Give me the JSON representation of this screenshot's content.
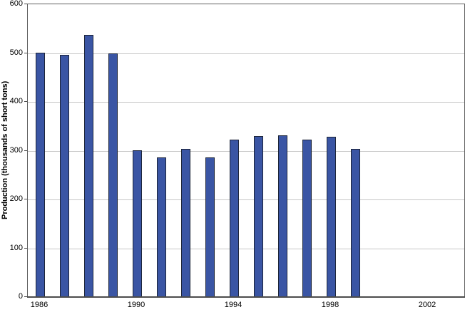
{
  "chart_data": {
    "type": "bar",
    "title": "",
    "xlabel": "",
    "ylabel": "Production (thousands of short tons)",
    "categories": [
      1986,
      1987,
      1988,
      1989,
      1990,
      1991,
      1992,
      1993,
      1994,
      1995,
      1996,
      1997,
      1998,
      1999
    ],
    "values": [
      501,
      496,
      537,
      499,
      301,
      286,
      303,
      286,
      322,
      330,
      332,
      323,
      329,
      304
    ],
    "x_axis_range": [
      1986,
      2003
    ],
    "ylim": [
      0,
      600
    ],
    "yticks": [
      0,
      100,
      200,
      300,
      400,
      500,
      600
    ],
    "xticks": [
      1986,
      1990,
      1994,
      1998,
      2002
    ],
    "grid": "horizontal-only",
    "legend_position": "none",
    "colors": {
      "bar_fill": "#3a55a4",
      "bar_border": "#1c2438",
      "gridline": "#c6c6c6",
      "axis_frame": "#5f5f5f",
      "text": "#000000",
      "background": "#ffffff"
    }
  }
}
